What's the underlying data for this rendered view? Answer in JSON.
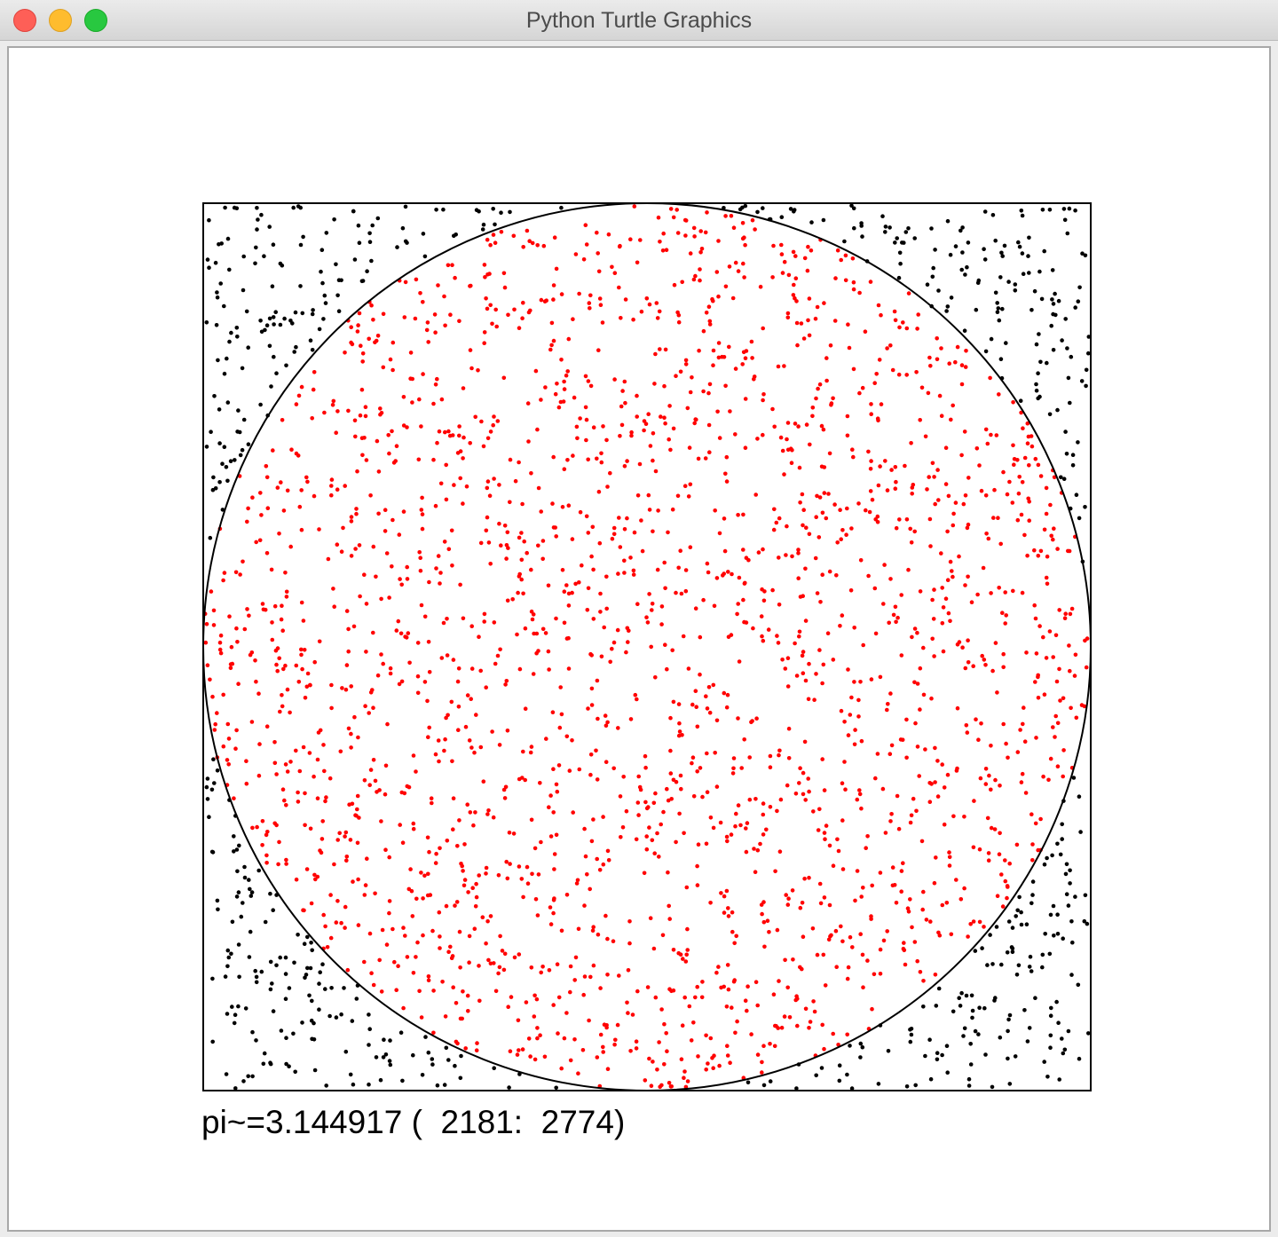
{
  "window": {
    "title": "Python Turtle Graphics",
    "buttons": [
      "close",
      "minimize",
      "zoom"
    ]
  },
  "canvas": {
    "background": "#ffffff",
    "square_color": "#000000",
    "circle_color": "#000000",
    "inside_point_color": "#ff0000",
    "outside_point_color": "#000000"
  },
  "simulation": {
    "pi_estimate": "3.144917",
    "points_inside": 2181,
    "points_total": 2774
  },
  "readout": {
    "text": "pi~=3.144917 (  2181:  2774)"
  }
}
